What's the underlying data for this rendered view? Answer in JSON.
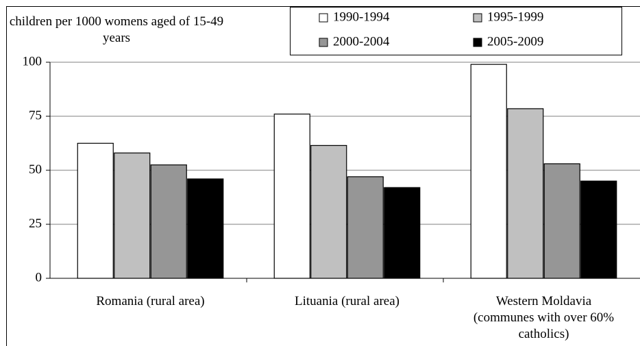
{
  "chart_data": {
    "type": "bar",
    "y_label": "children per 1000 womens aged of 15-49 years",
    "categories": [
      "Romania (rural area)",
      "Lituania (rural area)",
      "Western Moldavia (communes with over 60% catholics)"
    ],
    "series": [
      {
        "name": "1990-1994",
        "color": "#ffffff",
        "values": [
          62.5,
          76,
          99
        ]
      },
      {
        "name": "1995-1999",
        "color": "#c0c0c0",
        "values": [
          58,
          61.5,
          78.5
        ]
      },
      {
        "name": "2000-2004",
        "color": "#969696",
        "values": [
          52.5,
          47,
          53
        ]
      },
      {
        "name": "2005-2009",
        "color": "#000000",
        "values": [
          46,
          42,
          45
        ]
      }
    ],
    "ylim": [
      0,
      100
    ],
    "yticks": [
      0,
      25,
      50,
      75,
      100
    ],
    "grid": true
  }
}
